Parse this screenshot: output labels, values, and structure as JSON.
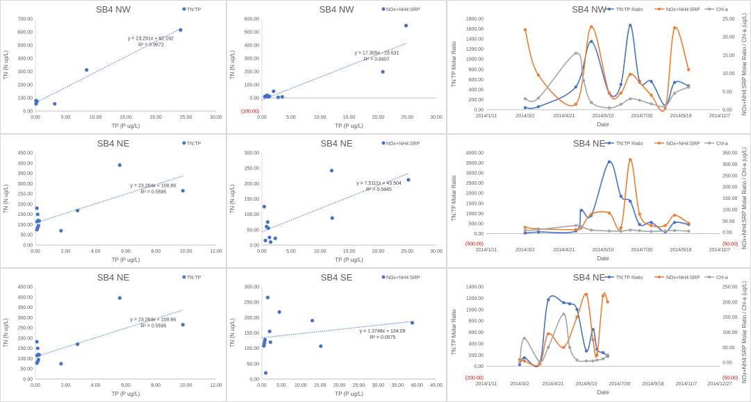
{
  "chart_data": [
    {
      "type": "scatter",
      "title": "SB4 NW",
      "xlabel": "TP (P ug/L)",
      "ylabel": "TN (N ug/L)",
      "xlim": [
        0,
        30
      ],
      "ylim": [
        0,
        700
      ],
      "xticks": [
        "0.00",
        "5.00",
        "10.00",
        "15.00",
        "20.00",
        "25.00",
        "30.00"
      ],
      "yticks": [
        "0.00",
        "100.00",
        "200.00",
        "300.00",
        "400.00",
        "500.00",
        "600.00",
        "700.00"
      ],
      "legend": "TN:TP",
      "color": "#4472C4",
      "points": [
        [
          0.1,
          55
        ],
        [
          0.15,
          65
        ],
        [
          0.2,
          70
        ],
        [
          0.25,
          75
        ],
        [
          0.1,
          80
        ],
        [
          3.2,
          55
        ],
        [
          8.5,
          312
        ],
        [
          24.1,
          615
        ]
      ],
      "trend": {
        "slope": 23.291,
        "intercept": 62.192
      },
      "eq": "y = 23.291x + 62.192",
      "r2": "R² = 0.9672"
    },
    {
      "type": "scatter",
      "title": "SB4 NW",
      "xlabel": "TP (P ug/L)",
      "ylabel": "TN (N ug/L)",
      "xlim": [
        0,
        30
      ],
      "ylim": [
        -100,
        600
      ],
      "xticks": [
        "0.00",
        "5.00",
        "10.00",
        "15.00",
        "20.00",
        "25.00",
        "30.00"
      ],
      "yticks": [
        "(100.00)",
        "0.00",
        "100.00",
        "200.00",
        "300.00",
        "400.00",
        "500.00",
        "600.00"
      ],
      "legend": "NOx+NH4:SRP",
      "color": "#4472C4",
      "points": [
        [
          0.5,
          10
        ],
        [
          0.7,
          15
        ],
        [
          0.9,
          20
        ],
        [
          1.1,
          8
        ],
        [
          1.3,
          12
        ],
        [
          2.0,
          50
        ],
        [
          2.8,
          5
        ],
        [
          3.5,
          8
        ],
        [
          20.8,
          198
        ],
        [
          24.8,
          548
        ]
      ],
      "trend": {
        "slope": 17.305,
        "intercept": -15.531
      },
      "eq": "y = 17.305x - 15.531",
      "r2": "R² = 0.8407"
    },
    {
      "type": "line",
      "title": "SB4 NW",
      "xlabel": "Date",
      "ylabel": "TN:TP Molar Ratio",
      "y2label": "NOx+NH4:SRP Molar Ratio / Chl-a (ug/L)",
      "xticks": [
        "2014/1/11",
        "2014/3/2",
        "2014/4/21",
        "2014/6/10",
        "2014/7/30",
        "2014/9/18",
        "2014/11/7"
      ],
      "yticks": [
        "0.00",
        "200.00",
        "400.00",
        "600.00",
        "800.00",
        "1000.00",
        "1200.00",
        "1400.00",
        "1600.00",
        "1800.00"
      ],
      "y2ticks": [
        "0.00",
        "5.00",
        "10.00",
        "15.00",
        "20.00",
        "25.00"
      ],
      "ylim": [
        0,
        1800
      ],
      "y2lim": [
        0,
        25
      ],
      "series": [
        {
          "name": "TN:TP Ratio",
          "color": "#4472C4",
          "axis": "left",
          "points": [
            [
              50,
              40
            ],
            [
              67,
              60
            ],
            [
              115,
              450
            ],
            [
              135,
              1350
            ],
            [
              158,
              330
            ],
            [
              173,
              500
            ],
            [
              185,
              1670
            ],
            [
              197,
              560
            ],
            [
              212,
              560
            ],
            [
              230,
              80
            ],
            [
              242,
              540
            ],
            [
              260,
              470
            ]
          ]
        },
        {
          "name": "NOx+NH4:SRP",
          "color": "#ED7D31",
          "axis": "right",
          "points": [
            [
              50,
              22
            ],
            [
              67,
              9.5
            ],
            [
              115,
              1.5
            ],
            [
              135,
              22.8
            ],
            [
              158,
              4.5
            ],
            [
              173,
              4.6
            ],
            [
              185,
              9.7
            ],
            [
              197,
              7.5
            ],
            [
              212,
              4
            ],
            [
              230,
              0.5
            ],
            [
              242,
              22.5
            ],
            [
              260,
              11
            ]
          ]
        },
        {
          "name": "Chl-a",
          "color": "#A5A5A5",
          "axis": "right",
          "points": [
            [
              50,
              3
            ],
            [
              67,
              3.2
            ],
            [
              115,
              15.5
            ],
            [
              125,
              8
            ],
            [
              135,
              2
            ],
            [
              158,
              0.5
            ],
            [
              173,
              1.5
            ],
            [
              185,
              3
            ],
            [
              197,
              2.6
            ],
            [
              212,
              1.6
            ],
            [
              230,
              1
            ],
            [
              242,
              4.5
            ],
            [
              260,
              6.2
            ]
          ]
        }
      ]
    },
    {
      "type": "scatter",
      "title": "SB4 NE",
      "xlabel": "TP (P ug/L)",
      "ylabel": "TN (N ug/L)",
      "xlim": [
        0,
        12
      ],
      "ylim": [
        0,
        450
      ],
      "xticks": [
        "0.00",
        "2.00",
        "4.00",
        "6.00",
        "8.00",
        "10.00",
        "12.00"
      ],
      "yticks": [
        "0.00",
        "50.00",
        "100.00",
        "150.00",
        "200.00",
        "250.00",
        "300.00",
        "350.00",
        "400.00",
        "450.00"
      ],
      "legend": "TN:TP",
      "color": "#4472C4",
      "points": [
        [
          0.1,
          75
        ],
        [
          0.15,
          85
        ],
        [
          0.2,
          95
        ],
        [
          0.12,
          115
        ],
        [
          0.18,
          120
        ],
        [
          0.25,
          118
        ],
        [
          0.15,
          150
        ],
        [
          0.1,
          180
        ],
        [
          1.7,
          70
        ],
        [
          2.8,
          168
        ],
        [
          5.6,
          390
        ],
        [
          9.8,
          265
        ]
      ],
      "trend": {
        "slope": 23.264,
        "intercept": 108.66
      },
      "eq": "y = 23.264x + 108.66",
      "r2": "R² = 0.5595"
    },
    {
      "type": "scatter",
      "title": "SB4 NE",
      "xlabel": "TP (P ug/L)",
      "ylabel": "TN (N ug/L)",
      "xlim": [
        0,
        30
      ],
      "ylim": [
        0,
        300
      ],
      "xticks": [
        "0.00",
        "5.00",
        "10.00",
        "15.00",
        "20.00",
        "25.00",
        "30.00"
      ],
      "yticks": [
        "0.00",
        "50.00",
        "100.00",
        "150.00",
        "200.00",
        "250.00",
        "300.00"
      ],
      "legend": "NOx+NH4:SRP",
      "color": "#4472C4",
      "points": [
        [
          0.4,
          125
        ],
        [
          0.6,
          15
        ],
        [
          0.8,
          60
        ],
        [
          1.0,
          75
        ],
        [
          1.1,
          55
        ],
        [
          1.3,
          25
        ],
        [
          1.5,
          10
        ],
        [
          2.3,
          22
        ],
        [
          12.0,
          242
        ],
        [
          12.1,
          88
        ],
        [
          25.2,
          212
        ]
      ],
      "trend": {
        "slope": 7.5111,
        "intercept": 43.504
      },
      "eq": "y = 7.5111x + 43.504",
      "r2": "R² = 0.5845"
    },
    {
      "type": "line",
      "title": "SB4 NE",
      "xlabel": "Date",
      "ylabel": "TN:TP Molar Ratio",
      "y2label": "NOx+NH4:SRP Molar Ratio / Chl-a (ug/L)",
      "xticks": [
        "2014/1/11",
        "2014/3/2",
        "2014/4/21",
        "2014/6/10",
        "2014/7/30",
        "2014/9/18",
        "2014/11/7"
      ],
      "yticks": [
        "(500.00)",
        "0.00",
        "500.00",
        "1000.00",
        "1500.00",
        "2000.00",
        "2500.00",
        "3000.00",
        "3500.00",
        "4000.00"
      ],
      "y2ticks": [
        "(50.00)",
        "0.00",
        "50.00",
        "100.00",
        "150.00",
        "200.00",
        "250.00",
        "300.00",
        "350.00"
      ],
      "ylim": [
        -500,
        4000
      ],
      "y2lim": [
        -50,
        350
      ],
      "series": [
        {
          "name": "TN:TP Ratio",
          "color": "#4472C4",
          "axis": "left",
          "points": [
            [
              50,
              30
            ],
            [
              67,
              80
            ],
            [
              115,
              130
            ],
            [
              122,
              1150
            ],
            [
              135,
              900
            ],
            [
              158,
              3550
            ],
            [
              173,
              1850
            ],
            [
              185,
              1600
            ],
            [
              197,
              450
            ],
            [
              212,
              550
            ],
            [
              230,
              80
            ],
            [
              242,
              550
            ],
            [
              260,
              450
            ]
          ]
        },
        {
          "name": "NOx+NH4:SRP",
          "color": "#ED7D31",
          "axis": "right",
          "points": [
            [
              50,
              22
            ],
            [
              67,
              15
            ],
            [
              115,
              12
            ],
            [
              122,
              20
            ],
            [
              135,
              80
            ],
            [
              158,
              85
            ],
            [
              173,
              20
            ],
            [
              185,
              320
            ],
            [
              197,
              80
            ],
            [
              212,
              30
            ],
            [
              230,
              30
            ],
            [
              242,
              75
            ],
            [
              260,
              40
            ]
          ]
        },
        {
          "name": "Chl-a",
          "color": "#A5A5A5",
          "axis": "right",
          "points": [
            [
              50,
              8
            ],
            [
              67,
              12
            ],
            [
              115,
              30
            ],
            [
              122,
              25
            ],
            [
              135,
              10
            ],
            [
              158,
              6
            ],
            [
              173,
              5
            ],
            [
              185,
              10
            ],
            [
              197,
              7
            ],
            [
              212,
              4
            ],
            [
              230,
              6
            ],
            [
              242,
              8
            ],
            [
              260,
              5
            ]
          ]
        }
      ]
    },
    {
      "type": "scatter",
      "title": "SB4 NE",
      "xlabel": "TP (P ug/L)",
      "ylabel": "TN (N ug/L)",
      "xlim": [
        0,
        12
      ],
      "ylim": [
        0,
        450
      ],
      "xticks": [
        "0.00",
        "2.00",
        "4.00",
        "6.00",
        "8.00",
        "10.00",
        "12.00"
      ],
      "yticks": [
        "0.00",
        "50.00",
        "100.00",
        "150.00",
        "200.00",
        "250.00",
        "300.00",
        "350.00",
        "400.00",
        "450.00"
      ],
      "legend": "TN:TP",
      "color": "#4472C4",
      "points": [
        [
          0.1,
          78
        ],
        [
          0.15,
          85
        ],
        [
          0.2,
          95
        ],
        [
          0.12,
          115
        ],
        [
          0.18,
          120
        ],
        [
          0.25,
          118
        ],
        [
          0.15,
          150
        ],
        [
          0.1,
          182
        ],
        [
          1.7,
          75
        ],
        [
          2.8,
          170
        ],
        [
          5.6,
          395
        ],
        [
          9.8,
          265
        ]
      ],
      "trend": {
        "slope": 23.264,
        "intercept": 108.66
      },
      "eq": "y = 23.264x + 108.66",
      "r2": "R² = 0.5595"
    },
    {
      "type": "scatter",
      "title": "SB4 SE",
      "xlabel": "TP (P ug/L)",
      "ylabel": "TN (N ug/L)",
      "xlim": [
        0,
        45
      ],
      "ylim": [
        0,
        300
      ],
      "xticks": [
        "0.00",
        "5.00",
        "10.00",
        "15.00",
        "20.00",
        "25.00",
        "30.00",
        "35.00",
        "40.00",
        "45.00"
      ],
      "yticks": [
        "0.00",
        "50.00",
        "100.00",
        "150.00",
        "200.00",
        "250.00",
        "300.00"
      ],
      "legend": "NOx+NH4:SRP",
      "color": "#4472C4",
      "points": [
        [
          0.5,
          108
        ],
        [
          0.6,
          115
        ],
        [
          0.7,
          122
        ],
        [
          0.8,
          128
        ],
        [
          1.0,
          20
        ],
        [
          1.5,
          265
        ],
        [
          2.0,
          155
        ],
        [
          2.2,
          120
        ],
        [
          4.5,
          218
        ],
        [
          13.0,
          190
        ],
        [
          15.2,
          107
        ],
        [
          38.8,
          183
        ]
      ],
      "trend": {
        "slope": 1.3748,
        "intercept": 134.09
      },
      "eq": "y = 1.3748x + 134.09",
      "r2": "R² = 0.0575"
    },
    {
      "type": "line",
      "title": "SB4 NE",
      "xlabel": "Date",
      "ylabel": "TN:TP Molar Ratio",
      "y2label": "NOx+NH4:SRP Molar Ratio / Chl-a (ug/L)",
      "xticks": [
        "2014/1/11",
        "2014/3/2",
        "2014/4/21",
        "2014/6/10",
        "2014/7/30",
        "2014/9/18",
        "2014/11/7",
        "2014/12/27"
      ],
      "yticks": [
        "(200.00)",
        "0.00",
        "200.00",
        "400.00",
        "600.00",
        "800.00",
        "1000.00",
        "1200.00",
        "1400.00"
      ],
      "y2ticks": [
        "(50.00)",
        "0.00",
        "50.00",
        "100.00",
        "150.00",
        "200.00",
        "250.00"
      ],
      "ylim": [
        -200,
        1400
      ],
      "y2lim": [
        -50,
        250
      ],
      "series": [
        {
          "name": "TN:TP Ratio",
          "color": "#4472C4",
          "axis": "left",
          "points": [
            [
              50,
              30
            ],
            [
              57,
              150
            ],
            [
              80,
              50
            ],
            [
              93,
              1170
            ],
            [
              116,
              1120
            ],
            [
              125,
              1100
            ],
            [
              136,
              1000
            ],
            [
              150,
              270
            ],
            [
              160,
              650
            ],
            [
              166,
              300
            ],
            [
              175,
              240
            ],
            [
              182,
              180
            ]
          ]
        },
        {
          "name": "NOx+NH4:SRP",
          "color": "#ED7D31",
          "axis": "right",
          "points": [
            [
              50,
              10
            ],
            [
              57,
              5
            ],
            [
              80,
              -5
            ],
            [
              93,
              95
            ],
            [
              116,
              50
            ],
            [
              136,
              150
            ],
            [
              150,
              225
            ],
            [
              160,
              75
            ],
            [
              166,
              25
            ],
            [
              175,
              220
            ],
            [
              182,
              200
            ]
          ]
        },
        {
          "name": "Chl-a",
          "color": "#A5A5A5",
          "axis": "right",
          "points": [
            [
              50,
              0
            ],
            [
              57,
              80
            ],
            [
              80,
              3
            ],
            [
              93,
              50
            ],
            [
              116,
              160
            ],
            [
              125,
              50
            ],
            [
              136,
              8
            ],
            [
              150,
              5
            ],
            [
              160,
              5
            ],
            [
              166,
              8
            ],
            [
              175,
              12
            ],
            [
              182,
              25
            ]
          ]
        }
      ]
    }
  ]
}
